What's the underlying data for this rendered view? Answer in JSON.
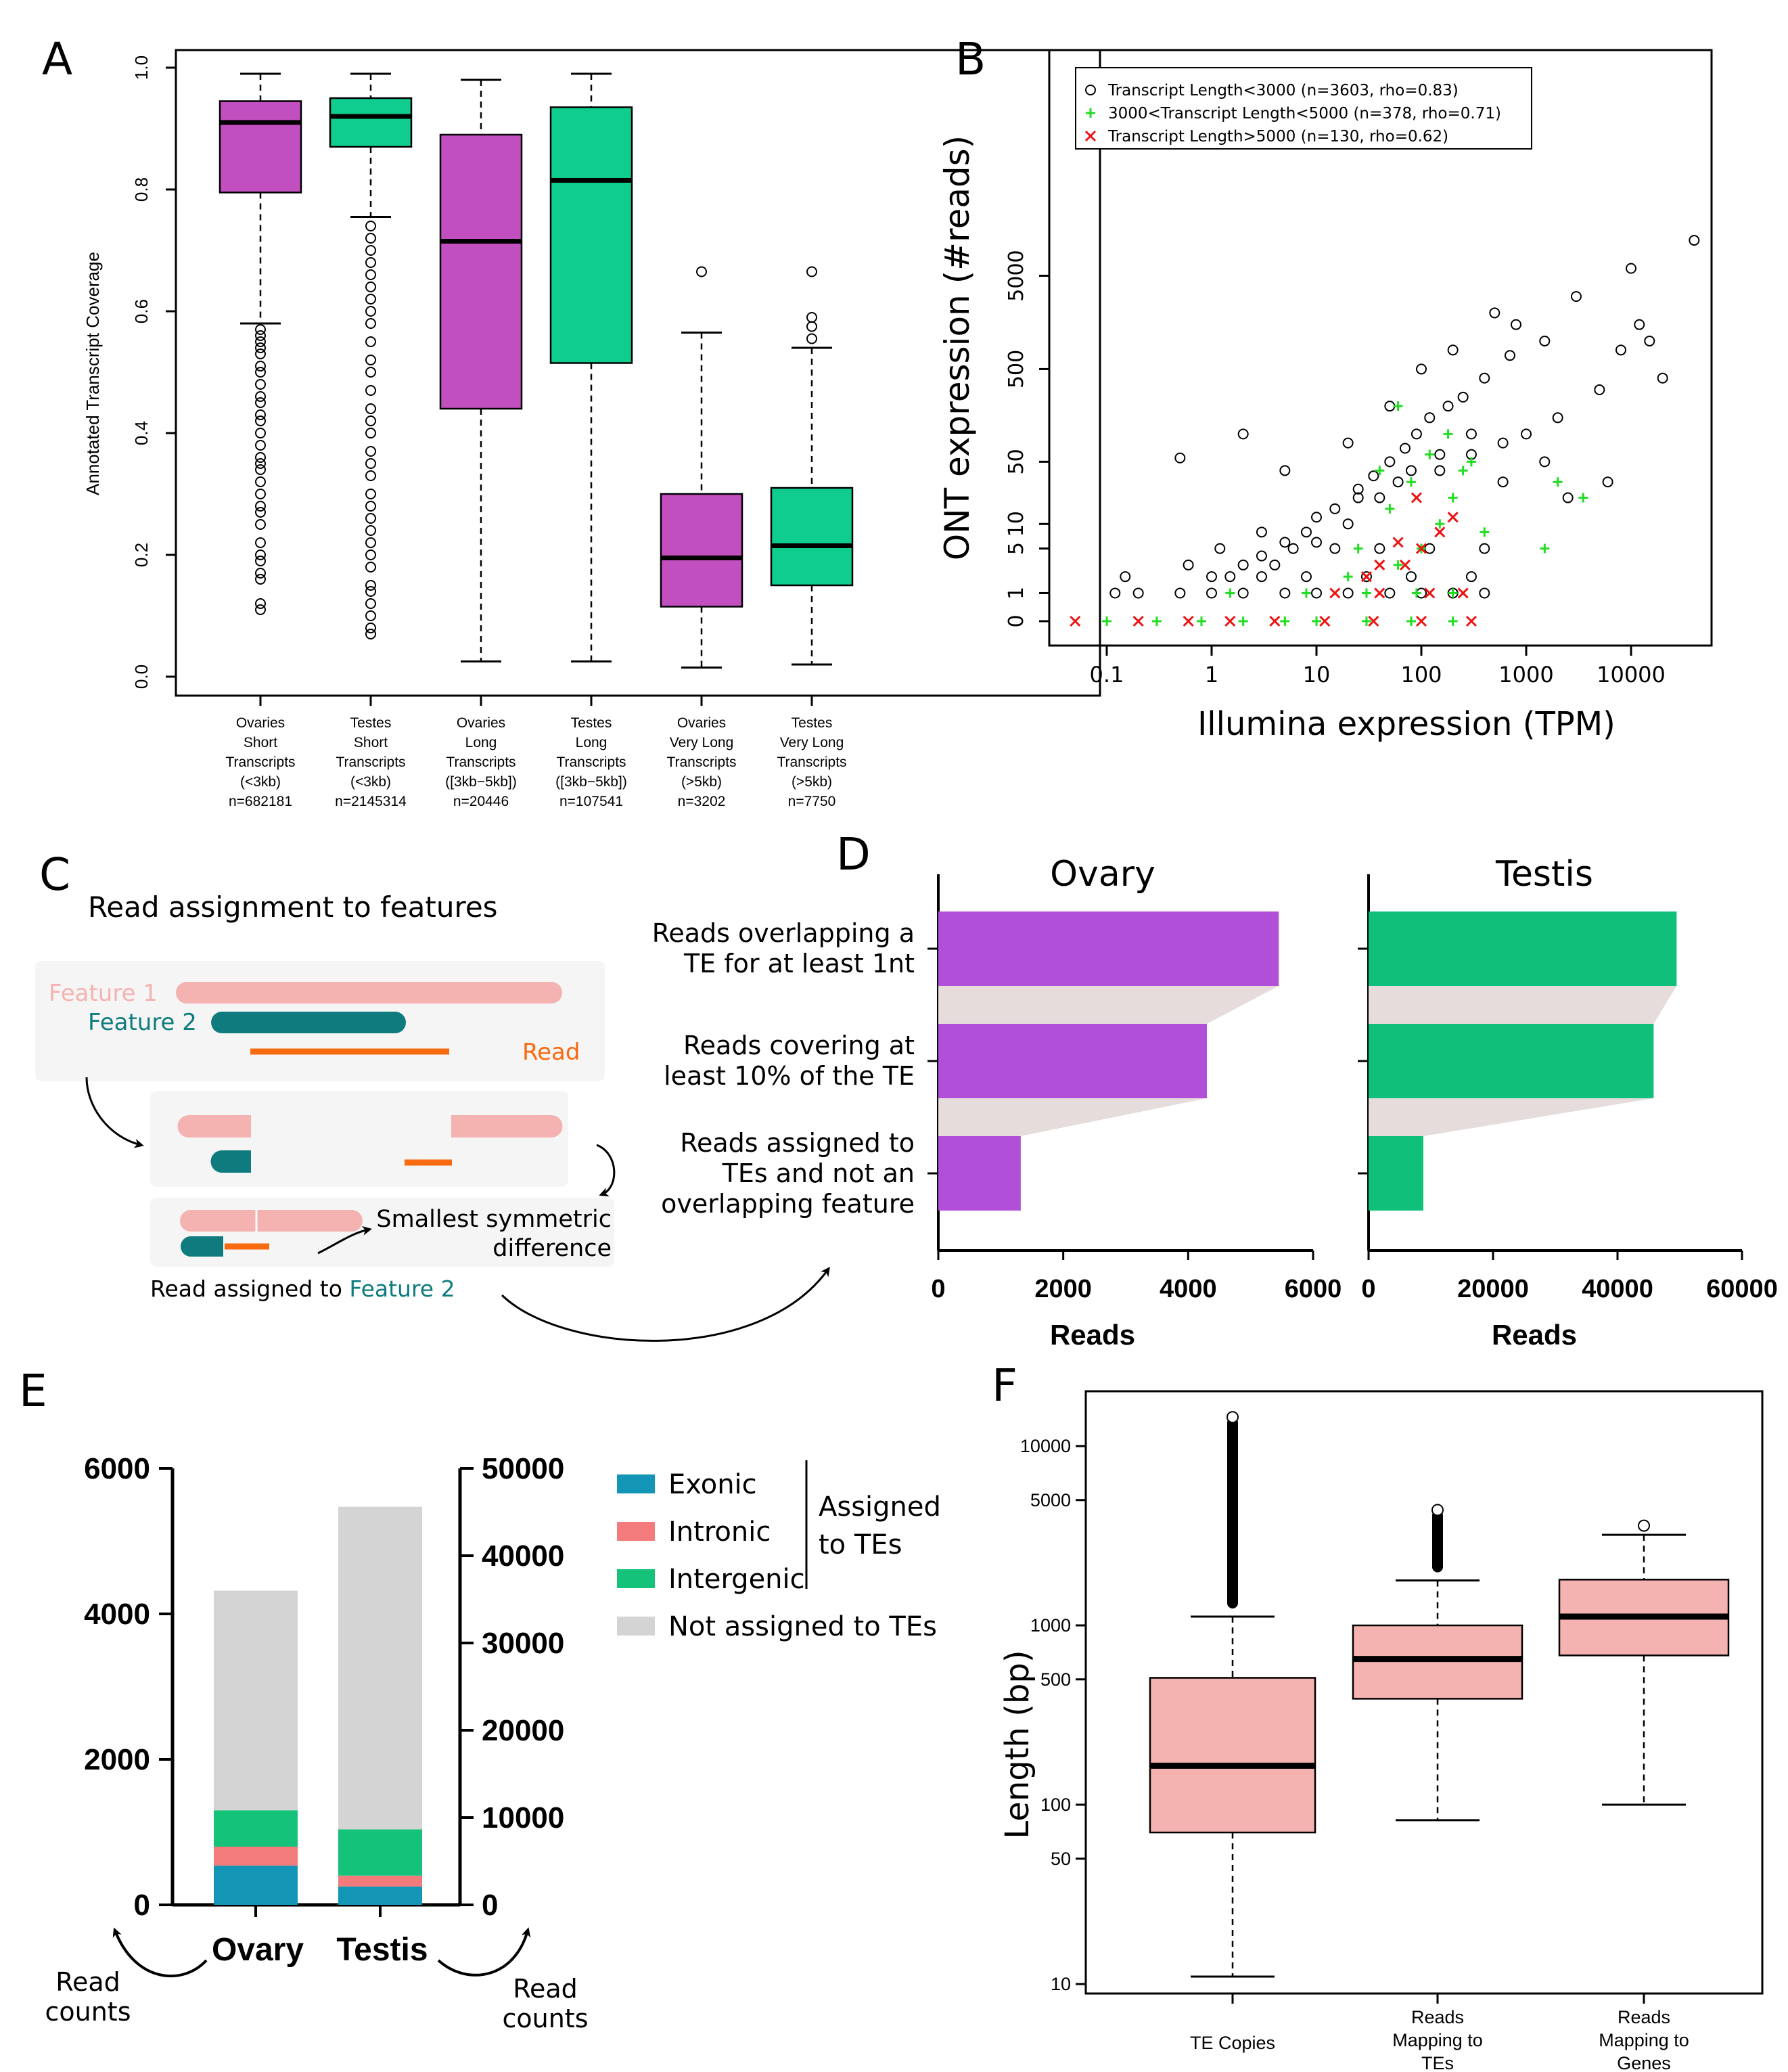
{
  "panel_labels": {
    "a": "A",
    "b": "B",
    "c": "C",
    "d": "D",
    "e": "E",
    "f": "F"
  },
  "colors": {
    "magenta": "#c24fbf",
    "green": "#0fcc8f",
    "purple_bar": "#b14fd8",
    "green_bar": "#0ec07a",
    "pink": "#f4b2b0",
    "teal": "#0f7b7e",
    "orange": "#f76a10",
    "grey": "#d4d4d4",
    "exonic": "#1396b6",
    "intronic": "#f47b7b",
    "intergenic": "#15c279",
    "scatter_green": "#22dd22",
    "scatter_red": "#ee1111"
  },
  "chart_data": [
    {
      "id": "A",
      "type": "box",
      "ylabel": "Annotated Transcript Coverage",
      "ylim": [
        0,
        1
      ],
      "yticks": [
        "0.0",
        "0.2",
        "0.4",
        "0.6",
        "0.8",
        "1.0"
      ],
      "categories": [
        [
          "Ovaries",
          "Short",
          "Transcripts",
          "(<3kb)",
          "n=682181"
        ],
        [
          "Testes",
          "Short",
          "Transcripts",
          "(<3kb)",
          "n=2145314"
        ],
        [
          "Ovaries",
          "Long",
          "Transcripts",
          "([3kb−5kb])",
          "n=20446"
        ],
        [
          "Testes",
          "Long",
          "Transcripts",
          "([3kb−5kb])",
          "n=107541"
        ],
        [
          "Ovaries",
          "Very Long",
          "Transcripts",
          "(>5kb)",
          "n=3202"
        ],
        [
          "Testes",
          "Very Long",
          "Transcripts",
          "(>5kb)",
          "n=7750"
        ]
      ],
      "boxes": [
        {
          "color": "magenta",
          "whisker_low": 0.58,
          "q1": 0.795,
          "median": 0.91,
          "q3": 0.945,
          "whisker_high": 0.99,
          "outliers": [
            0.11,
            0.12,
            0.16,
            0.17,
            0.19,
            0.2,
            0.22,
            0.25,
            0.27,
            0.28,
            0.3,
            0.32,
            0.34,
            0.35,
            0.36,
            0.38,
            0.4,
            0.42,
            0.43,
            0.45,
            0.46,
            0.48,
            0.5,
            0.51,
            0.53,
            0.54,
            0.55,
            0.56,
            0.57
          ]
        },
        {
          "color": "green",
          "whisker_low": 0.755,
          "q1": 0.87,
          "median": 0.92,
          "q3": 0.95,
          "whisker_high": 0.99,
          "outliers": [
            0.07,
            0.08,
            0.1,
            0.12,
            0.14,
            0.15,
            0.18,
            0.2,
            0.22,
            0.24,
            0.26,
            0.28,
            0.3,
            0.33,
            0.35,
            0.37,
            0.4,
            0.42,
            0.44,
            0.47,
            0.5,
            0.52,
            0.55,
            0.58,
            0.6,
            0.62,
            0.64,
            0.66,
            0.68,
            0.7,
            0.72,
            0.74
          ]
        },
        {
          "color": "magenta",
          "whisker_low": 0.025,
          "q1": 0.44,
          "median": 0.715,
          "q3": 0.89,
          "whisker_high": 0.98,
          "outliers": []
        },
        {
          "color": "green",
          "whisker_low": 0.025,
          "q1": 0.515,
          "median": 0.815,
          "q3": 0.935,
          "whisker_high": 0.99,
          "outliers": []
        },
        {
          "color": "magenta",
          "whisker_low": 0.015,
          "q1": 0.115,
          "median": 0.195,
          "q3": 0.3,
          "whisker_high": 0.565,
          "outliers": [
            0.665
          ]
        },
        {
          "color": "green",
          "whisker_low": 0.02,
          "q1": 0.15,
          "median": 0.215,
          "q3": 0.31,
          "whisker_high": 0.54,
          "outliers": [
            0.555,
            0.575,
            0.59,
            0.665
          ]
        }
      ]
    },
    {
      "id": "B",
      "type": "scatter",
      "xlabel": "Illumina expression (TPM)",
      "ylabel": "ONT expression (#reads)",
      "x_scale": "log",
      "y_scale": "log1p",
      "xticks": [
        "0.1",
        "1",
        "10",
        "100",
        "1000",
        "10000"
      ],
      "yticks": [
        "0",
        "1",
        "5",
        "10",
        "50",
        "500",
        "5000"
      ],
      "series": [
        {
          "name": "Transcript Length<3000 (n=3603, rho=0.83)",
          "marker": "circle",
          "color": "#000000",
          "points": [
            [
              0.12,
              1
            ],
            [
              0.2,
              1
            ],
            [
              0.5,
              1
            ],
            [
              1,
              1
            ],
            [
              2,
              1
            ],
            [
              5,
              1
            ],
            [
              10,
              1
            ],
            [
              20,
              1
            ],
            [
              50,
              1
            ],
            [
              100,
              1
            ],
            [
              200,
              1
            ],
            [
              400,
              1
            ],
            [
              1.5,
              2
            ],
            [
              3,
              2
            ],
            [
              8,
              2
            ],
            [
              30,
              2
            ],
            [
              80,
              2
            ],
            [
              300,
              2
            ],
            [
              0.15,
              2
            ],
            [
              0.6,
              3
            ],
            [
              2,
              3
            ],
            [
              6,
              5
            ],
            [
              15,
              5
            ],
            [
              40,
              5
            ],
            [
              120,
              5
            ],
            [
              400,
              5
            ],
            [
              1.2,
              5
            ],
            [
              3,
              8
            ],
            [
              10,
              12
            ],
            [
              25,
              20
            ],
            [
              60,
              30
            ],
            [
              150,
              40
            ],
            [
              300,
              60
            ],
            [
              600,
              80
            ],
            [
              1000,
              100
            ],
            [
              2000,
              150
            ],
            [
              5000,
              300
            ],
            [
              8000,
              800
            ],
            [
              12000,
              1500
            ],
            [
              40000,
              12000
            ],
            [
              10000,
              6000
            ],
            [
              3000,
              3000
            ],
            [
              1500,
              1000
            ],
            [
              700,
              700
            ],
            [
              400,
              400
            ],
            [
              250,
              250
            ],
            [
              180,
              200
            ],
            [
              120,
              150
            ],
            [
              90,
              100
            ],
            [
              70,
              70
            ],
            [
              50,
              50
            ],
            [
              35,
              35
            ],
            [
              25,
              25
            ],
            [
              15,
              15
            ],
            [
              8,
              8
            ],
            [
              5,
              6
            ],
            [
              3,
              4
            ],
            [
              0.5,
              55
            ],
            [
              2,
              100
            ],
            [
              5,
              40
            ],
            [
              20,
              80
            ],
            [
              50,
              200
            ],
            [
              100,
              500
            ],
            [
              200,
              800
            ],
            [
              500,
              2000
            ],
            [
              800,
              1500
            ],
            [
              20000,
              400
            ],
            [
              15000,
              1000
            ],
            [
              300,
              100
            ],
            [
              150,
              60
            ],
            [
              80,
              40
            ],
            [
              40,
              20
            ],
            [
              20,
              10
            ],
            [
              10,
              6
            ],
            [
              4,
              3
            ],
            [
              1,
              2
            ],
            [
              600,
              30
            ],
            [
              1500,
              50
            ],
            [
              6000,
              30
            ],
            [
              2500,
              20
            ]
          ]
        },
        {
          "name": "3000<Transcript Length<5000 (n=378, rho=0.71)",
          "marker": "plus",
          "color": "#22dd22",
          "points": [
            [
              0.1,
              0
            ],
            [
              0.3,
              0
            ],
            [
              0.8,
              0
            ],
            [
              2,
              0
            ],
            [
              5,
              0
            ],
            [
              10,
              0
            ],
            [
              30,
              0
            ],
            [
              80,
              0
            ],
            [
              200,
              0
            ],
            [
              1.5,
              1
            ],
            [
              8,
              1
            ],
            [
              30,
              1
            ],
            [
              90,
              1
            ],
            [
              200,
              1
            ],
            [
              20,
              2
            ],
            [
              60,
              3
            ],
            [
              100,
              5
            ],
            [
              150,
              10
            ],
            [
              200,
              20
            ],
            [
              250,
              40
            ],
            [
              120,
              60
            ],
            [
              80,
              30
            ],
            [
              50,
              15
            ],
            [
              180,
              100
            ],
            [
              300,
              50
            ],
            [
              1500,
              5
            ],
            [
              2000,
              30
            ],
            [
              3500,
              20
            ],
            [
              60,
              200
            ],
            [
              400,
              8
            ],
            [
              25,
              5
            ],
            [
              40,
              40
            ]
          ]
        },
        {
          "name": "Transcript Length>5000 (n=130, rho=0.62)",
          "marker": "cross",
          "color": "#ee1111",
          "points": [
            [
              0.05,
              0
            ],
            [
              0.2,
              0
            ],
            [
              0.6,
              0
            ],
            [
              1.5,
              0
            ],
            [
              4,
              0
            ],
            [
              12,
              0
            ],
            [
              35,
              0
            ],
            [
              100,
              0
            ],
            [
              300,
              0
            ],
            [
              15,
              1
            ],
            [
              40,
              1
            ],
            [
              120,
              1
            ],
            [
              250,
              1
            ],
            [
              30,
              2
            ],
            [
              70,
              3
            ],
            [
              100,
              5
            ],
            [
              150,
              8
            ],
            [
              200,
              12
            ],
            [
              60,
              6
            ],
            [
              90,
              20
            ],
            [
              40,
              3
            ]
          ]
        }
      ]
    },
    {
      "id": "D",
      "type": "bar",
      "categories": [
        "Reads overlapping a|TE for at least 1nt",
        "Reads covering at|least 10% of the TE",
        "Reads assigned to|TEs and not an|overlapping feature"
      ],
      "xlabel": "Reads",
      "series": [
        {
          "name": "Ovary",
          "values": [
            5450,
            4300,
            1320
          ],
          "xlim": [
            0,
            6000
          ],
          "xticks": [
            "0",
            "2000",
            "4000",
            "6000"
          ]
        },
        {
          "name": "Testis",
          "values": [
            49500,
            45800,
            8800
          ],
          "xlim": [
            0,
            60000
          ],
          "xticks": [
            "0",
            "20000",
            "40000",
            "60000"
          ]
        }
      ]
    },
    {
      "id": "E",
      "type": "bar",
      "categories": [
        "Ovary",
        "Testis"
      ],
      "left_ylim": [
        0,
        6000
      ],
      "left_yticks": [
        "0",
        "2000",
        "4000",
        "6000"
      ],
      "right_ylim": [
        0,
        50000
      ],
      "right_yticks": [
        "0",
        "10000",
        "20000",
        "30000",
        "40000",
        "50000"
      ],
      "series": [
        {
          "name": "Exonic",
          "values": [
            540,
            2100
          ]
        },
        {
          "name": "Intronic",
          "values": [
            260,
            1250
          ]
        },
        {
          "name": "Intergenic",
          "values": [
            500,
            5300
          ]
        },
        {
          "name": "Not assigned to TEs",
          "values": [
            3020,
            36950
          ]
        }
      ],
      "legend_group": "Assigned|to TEs",
      "axis_notes": [
        "Read|counts",
        "Read|counts"
      ]
    },
    {
      "id": "F",
      "type": "box",
      "ylabel": "Length (bp)",
      "y_scale": "log",
      "yticks": [
        "10",
        "50",
        "100",
        "500",
        "1000",
        "5000",
        "10000"
      ],
      "categories": [
        [
          "TE Copies"
        ],
        [
          "Reads",
          "Mapping to",
          "TEs"
        ],
        [
          "Reads",
          "Mapping to",
          "Genes"
        ]
      ],
      "boxes": [
        {
          "whisker_low": 11,
          "q1": 70,
          "median": 165,
          "q3": 510,
          "whisker_high": 1120,
          "outlier_max": 14500
        },
        {
          "whisker_low": 82,
          "q1": 390,
          "median": 650,
          "q3": 1000,
          "whisker_high": 1780,
          "outlier_max": 4400
        },
        {
          "whisker_low": 100,
          "q1": 680,
          "median": 1120,
          "q3": 1800,
          "whisker_high": 3200,
          "outlier_max": 3600
        }
      ]
    }
  ],
  "panel_c": {
    "title": "Read assignment to features",
    "feature1": "Feature 1",
    "feature2": "Feature 2",
    "read": "Read",
    "ssd": "Smallest symmetric|difference",
    "assigned_prefix": "Read assigned to ",
    "assigned_feature": "Feature 2"
  }
}
